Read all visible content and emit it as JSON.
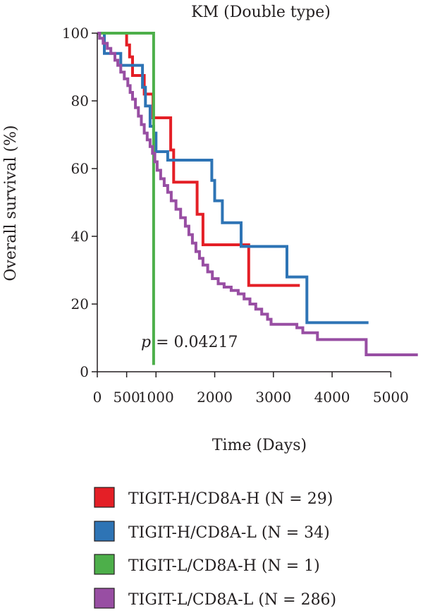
{
  "chart_data": {
    "type": "line",
    "subtype": "kaplan-meier-step",
    "title": "KM (Double type)",
    "xlabel": "Time (Days)",
    "ylabel": "Overall survival (%)",
    "xlim": [
      0,
      5500
    ],
    "ylim": [
      0,
      100
    ],
    "x_ticks": [
      0,
      500,
      1000,
      2000,
      3000,
      4000,
      5000
    ],
    "x_tick_labels": [
      "0",
      "500",
      "1000",
      "2000",
      "3000",
      "4000",
      "5000"
    ],
    "y_ticks": [
      0,
      20,
      40,
      60,
      80,
      100
    ],
    "y_tick_labels": [
      "0",
      "20",
      "40",
      "60",
      "80",
      "100"
    ],
    "grid": false,
    "legend_position": "bottom",
    "annotation": {
      "italic": "p",
      "text": " = 0.04217"
    },
    "series": [
      {
        "name": "TIGIT-H/CD8A-H (N = 29)",
        "color": "#e41f26",
        "points": [
          [
            0,
            100
          ],
          [
            500,
            100
          ],
          [
            500,
            96.5
          ],
          [
            550,
            96.5
          ],
          [
            550,
            93
          ],
          [
            600,
            93
          ],
          [
            600,
            87.5
          ],
          [
            800,
            87.5
          ],
          [
            800,
            82
          ],
          [
            950,
            82
          ],
          [
            950,
            75
          ],
          [
            1250,
            75
          ],
          [
            1250,
            65.5
          ],
          [
            1300,
            65.5
          ],
          [
            1300,
            56
          ],
          [
            1700,
            56
          ],
          [
            1700,
            46.5
          ],
          [
            1800,
            46.5
          ],
          [
            1800,
            37.5
          ],
          [
            2580,
            37.5
          ],
          [
            2580,
            25.5
          ],
          [
            3450,
            25.5
          ]
        ]
      },
      {
        "name": "TIGIT-H/CD8A-L (N = 34)",
        "color": "#2e74b5",
        "points": [
          [
            0,
            100
          ],
          [
            120,
            100
          ],
          [
            120,
            94
          ],
          [
            400,
            94
          ],
          [
            400,
            90.5
          ],
          [
            770,
            90.5
          ],
          [
            770,
            84
          ],
          [
            820,
            84
          ],
          [
            820,
            78.5
          ],
          [
            900,
            78.5
          ],
          [
            900,
            72.5
          ],
          [
            960,
            72.5
          ],
          [
            960,
            70.5
          ],
          [
            1000,
            70.5
          ],
          [
            1000,
            65
          ],
          [
            1200,
            65
          ],
          [
            1200,
            62.5
          ],
          [
            1950,
            62.5
          ],
          [
            1950,
            56.5
          ],
          [
            2000,
            56.5
          ],
          [
            2000,
            50.5
          ],
          [
            2130,
            50.5
          ],
          [
            2130,
            44
          ],
          [
            2450,
            44
          ],
          [
            2450,
            37
          ],
          [
            3230,
            37
          ],
          [
            3230,
            28
          ],
          [
            3570,
            28
          ],
          [
            3570,
            14.5
          ],
          [
            4620,
            14.5
          ]
        ]
      },
      {
        "name": "TIGIT-L/CD8A-H (N = 1)",
        "color": "#4daf4a",
        "points": [
          [
            0,
            100
          ],
          [
            960,
            100
          ],
          [
            960,
            2
          ]
        ]
      },
      {
        "name": "TIGIT-L/CD8A-L (N = 286)",
        "color": "#984ea3",
        "points": [
          [
            0,
            100
          ],
          [
            40,
            100
          ],
          [
            40,
            98.5
          ],
          [
            100,
            98.5
          ],
          [
            100,
            97
          ],
          [
            170,
            97
          ],
          [
            170,
            95.5
          ],
          [
            230,
            95.5
          ],
          [
            230,
            94
          ],
          [
            300,
            94
          ],
          [
            300,
            92
          ],
          [
            350,
            92
          ],
          [
            350,
            90.5
          ],
          [
            400,
            90.5
          ],
          [
            400,
            88.5
          ],
          [
            460,
            88.5
          ],
          [
            460,
            86.5
          ],
          [
            520,
            86.5
          ],
          [
            520,
            84.5
          ],
          [
            560,
            84.5
          ],
          [
            560,
            82.5
          ],
          [
            600,
            82.5
          ],
          [
            600,
            80.5
          ],
          [
            650,
            80.5
          ],
          [
            650,
            78
          ],
          [
            700,
            78
          ],
          [
            700,
            75.5
          ],
          [
            750,
            75.5
          ],
          [
            750,
            73
          ],
          [
            800,
            73
          ],
          [
            800,
            70.5
          ],
          [
            850,
            70.5
          ],
          [
            850,
            68.5
          ],
          [
            900,
            68.5
          ],
          [
            900,
            66.5
          ],
          [
            940,
            66.5
          ],
          [
            940,
            64.5
          ],
          [
            980,
            64.5
          ],
          [
            980,
            62
          ],
          [
            1020,
            62
          ],
          [
            1020,
            59.5
          ],
          [
            1080,
            59.5
          ],
          [
            1080,
            57
          ],
          [
            1140,
            57
          ],
          [
            1140,
            55
          ],
          [
            1200,
            55
          ],
          [
            1200,
            53
          ],
          [
            1260,
            53
          ],
          [
            1260,
            50.5
          ],
          [
            1340,
            50.5
          ],
          [
            1340,
            48
          ],
          [
            1420,
            48
          ],
          [
            1420,
            45.5
          ],
          [
            1500,
            45.5
          ],
          [
            1500,
            43
          ],
          [
            1560,
            43
          ],
          [
            1560,
            40.5
          ],
          [
            1620,
            40.5
          ],
          [
            1620,
            38
          ],
          [
            1680,
            38
          ],
          [
            1680,
            35.5
          ],
          [
            1740,
            35.5
          ],
          [
            1740,
            33.5
          ],
          [
            1800,
            33.5
          ],
          [
            1800,
            31.5
          ],
          [
            1880,
            31.5
          ],
          [
            1880,
            29.5
          ],
          [
            1960,
            29.5
          ],
          [
            1960,
            27.5
          ],
          [
            2060,
            27.5
          ],
          [
            2060,
            26
          ],
          [
            2160,
            26
          ],
          [
            2160,
            25
          ],
          [
            2280,
            25
          ],
          [
            2280,
            24
          ],
          [
            2400,
            24
          ],
          [
            2400,
            23
          ],
          [
            2500,
            23
          ],
          [
            2500,
            21.5
          ],
          [
            2600,
            21.5
          ],
          [
            2600,
            20
          ],
          [
            2700,
            20
          ],
          [
            2700,
            18.5
          ],
          [
            2800,
            18.5
          ],
          [
            2800,
            17
          ],
          [
            2900,
            17
          ],
          [
            2900,
            15.5
          ],
          [
            2960,
            15.5
          ],
          [
            2960,
            14
          ],
          [
            3400,
            14
          ],
          [
            3400,
            13
          ],
          [
            3500,
            13
          ],
          [
            3500,
            11.5
          ],
          [
            3750,
            11.5
          ],
          [
            3750,
            9.5
          ],
          [
            4580,
            9.5
          ],
          [
            4580,
            5
          ],
          [
            5460,
            5
          ]
        ]
      }
    ]
  }
}
